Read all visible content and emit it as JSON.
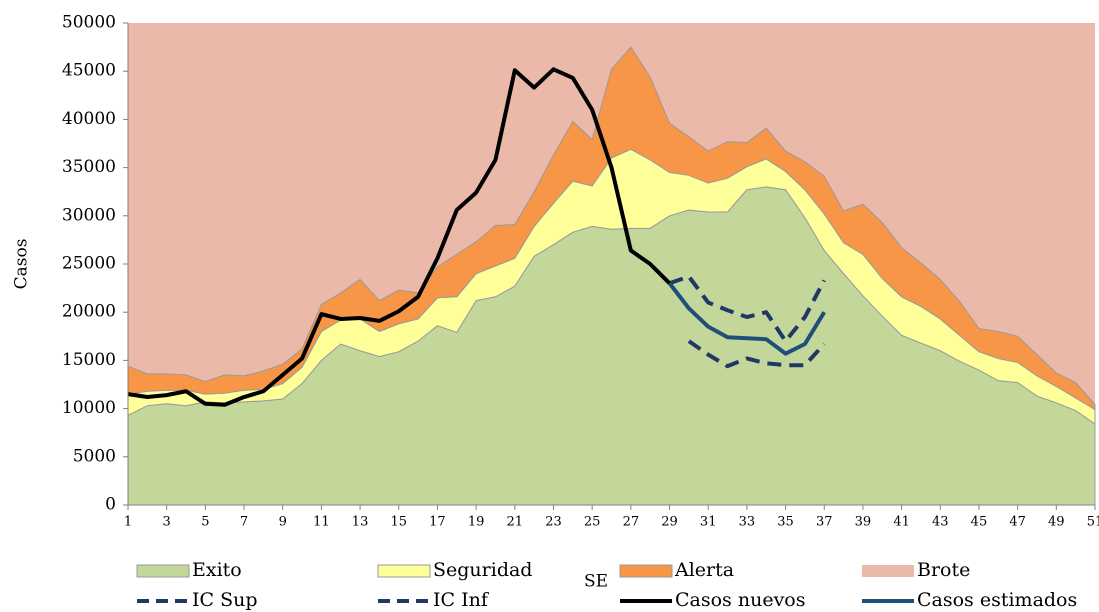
{
  "chart_data": {
    "type": "area",
    "x_label": "SE",
    "y_label": "Casos",
    "x": [
      1,
      2,
      3,
      4,
      5,
      6,
      7,
      8,
      9,
      10,
      11,
      12,
      13,
      14,
      15,
      16,
      17,
      18,
      19,
      20,
      21,
      22,
      23,
      24,
      25,
      26,
      27,
      28,
      29,
      30,
      31,
      32,
      33,
      34,
      35,
      36,
      37,
      38,
      39,
      40,
      41,
      42,
      43,
      44,
      45,
      46,
      47,
      48,
      49,
      50,
      51
    ],
    "xlim": [
      1,
      51
    ],
    "xticks": [
      1,
      3,
      5,
      7,
      9,
      11,
      13,
      15,
      17,
      19,
      21,
      23,
      25,
      27,
      29,
      31,
      33,
      35,
      37,
      39,
      41,
      43,
      45,
      47,
      49,
      51
    ],
    "ylim": [
      0,
      50000
    ],
    "yticks": [
      0,
      5000,
      10000,
      15000,
      20000,
      25000,
      30000,
      35000,
      40000,
      45000,
      50000
    ],
    "stacked": true,
    "series": [
      {
        "name": "Exito",
        "kind": "area",
        "color": "#c4d79b",
        "values": [
          9300,
          10300,
          10500,
          10300,
          10700,
          10600,
          10700,
          10800,
          11000,
          12600,
          15000,
          16700,
          16000,
          15400,
          15900,
          17000,
          18600,
          17900,
          21200,
          21600,
          22700,
          25800,
          27000,
          28300,
          28900,
          28600,
          28700,
          28700,
          30000,
          30600,
          30400,
          30400,
          32700,
          33000,
          32700,
          29800,
          26400,
          24000,
          21700,
          19600,
          17600,
          16800,
          16000,
          14900,
          14000,
          12900,
          12700,
          11300,
          10600,
          9800,
          8400
        ]
      },
      {
        "name": "Seguridad",
        "kind": "area",
        "color": "#ffff99",
        "values": [
          2200,
          1500,
          1400,
          1600,
          800,
          1000,
          1200,
          1200,
          1600,
          1700,
          3000,
          2500,
          3300,
          2600,
          2900,
          2300,
          2900,
          3700,
          2800,
          3200,
          2900,
          3100,
          4300,
          5300,
          4200,
          7400,
          8200,
          7100,
          4500,
          3600,
          3000,
          3500,
          2400,
          2900,
          1900,
          2900,
          3800,
          3200,
          4300,
          3900,
          4000,
          3800,
          3300,
          2700,
          1900,
          2300,
          2100,
          2100,
          1700,
          1300,
          1500
        ]
      },
      {
        "name": "Alerta",
        "kind": "area",
        "color": "#f79646",
        "values": [
          2900,
          1800,
          1700,
          1600,
          1300,
          1900,
          1500,
          1900,
          2000,
          1900,
          2800,
          2800,
          4100,
          3200,
          3500,
          2700,
          3200,
          4400,
          3300,
          4200,
          3500,
          3600,
          5000,
          6200,
          4800,
          9200,
          10600,
          8600,
          5100,
          4000,
          3300,
          3800,
          2500,
          3200,
          2100,
          2900,
          3900,
          3300,
          5200,
          5800,
          5100,
          4500,
          4100,
          3500,
          2400,
          2800,
          2700,
          2200,
          1400,
          1600,
          500
        ]
      },
      {
        "name": "Brote",
        "kind": "fill",
        "color": "#ebb9a9"
      },
      {
        "name": "IC Sup",
        "kind": "line",
        "dashed": true,
        "color": "#1f3864",
        "values": [
          null,
          null,
          null,
          null,
          null,
          null,
          null,
          null,
          null,
          null,
          null,
          null,
          null,
          null,
          null,
          null,
          null,
          null,
          null,
          null,
          null,
          null,
          null,
          null,
          null,
          null,
          null,
          null,
          23000,
          23700,
          21000,
          20200,
          19500,
          20000,
          17000,
          19500,
          23300,
          null,
          null,
          null,
          null,
          null,
          null,
          null,
          null,
          null,
          null,
          null,
          null,
          null,
          null
        ]
      },
      {
        "name": "IC Inf",
        "kind": "line",
        "dashed": true,
        "color": "#1f3864",
        "values": [
          null,
          null,
          null,
          null,
          null,
          null,
          null,
          null,
          null,
          null,
          null,
          null,
          null,
          null,
          null,
          null,
          null,
          null,
          null,
          null,
          null,
          null,
          null,
          null,
          null,
          null,
          null,
          null,
          null,
          17000,
          15600,
          14400,
          15200,
          14700,
          14500,
          14500,
          16700,
          null,
          null,
          null,
          null,
          null,
          null,
          null,
          null,
          null,
          null,
          null,
          null,
          null,
          null
        ]
      },
      {
        "name": "Casos nuevos",
        "kind": "line",
        "dashed": false,
        "color": "#000000",
        "values": [
          11500,
          11200,
          11400,
          11800,
          10500,
          10400,
          11200,
          11800,
          13500,
          15200,
          19800,
          19300,
          19400,
          19100,
          20100,
          21600,
          25600,
          30600,
          32400,
          35800,
          45100,
          43300,
          45200,
          44300,
          41000,
          35000,
          26400,
          25000,
          23000,
          null,
          null,
          null,
          null,
          null,
          null,
          null,
          null,
          null,
          null,
          null,
          null,
          null,
          null,
          null,
          null,
          null,
          null,
          null,
          null,
          null,
          null
        ]
      },
      {
        "name": "Casos estimados",
        "kind": "line",
        "dashed": false,
        "color": "#1f4e79",
        "values": [
          null,
          null,
          null,
          null,
          null,
          null,
          null,
          null,
          null,
          null,
          null,
          null,
          null,
          null,
          null,
          null,
          null,
          null,
          null,
          null,
          null,
          null,
          null,
          null,
          null,
          null,
          null,
          null,
          23000,
          20400,
          18500,
          17400,
          17300,
          17200,
          15700,
          16700,
          20000,
          null,
          null,
          null,
          null,
          null,
          null,
          null,
          null,
          null,
          null,
          null,
          null,
          null,
          null
        ]
      }
    ]
  }
}
